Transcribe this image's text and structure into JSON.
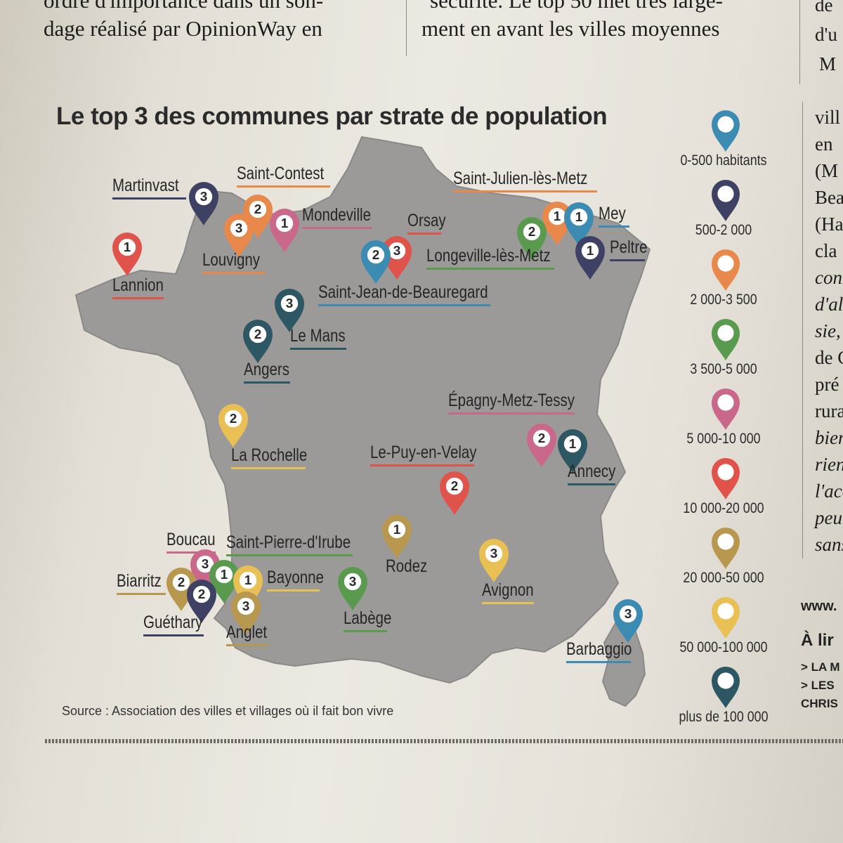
{
  "article": {
    "left_lines": [
      "ordre d'importance dans un son-",
      "dage réalisé par OpinionWay en"
    ],
    "mid_lines": [
      "sécurité. Le top 50 met très large-",
      "ment en avant les villes moyennes"
    ],
    "right_top": [
      "de",
      "d'u",
      "M"
    ],
    "right_col": [
      {
        "t": "vill",
        "i": false
      },
      {
        "t": "en",
        "i": false
      },
      {
        "t": "(M",
        "i": false
      },
      {
        "t": "Bea",
        "i": false
      },
      {
        "t": "(Ha",
        "i": false
      },
      {
        "t": "cla",
        "i": false
      },
      {
        "t": "con",
        "i": true
      },
      {
        "t": "d'al",
        "i": true
      },
      {
        "t": "sie,",
        "i": true
      },
      {
        "t": "de C",
        "i": false
      },
      {
        "t": "pré",
        "i": false
      },
      {
        "t": "rura",
        "i": false
      },
      {
        "t": "bien",
        "i": true
      },
      {
        "t": "rien",
        "i": true
      },
      {
        "t": "l'acc",
        "i": true
      },
      {
        "t": "peu",
        "i": true
      },
      {
        "t": "sans",
        "i": true
      }
    ],
    "right_bits": [
      "www.",
      "À lir",
      "> LA M",
      "> LES",
      "CHRIS"
    ]
  },
  "title": "Le top 3 des communes par strate de population",
  "source": "Source : Association des villes et villages où il fait bon vivre",
  "legend": [
    {
      "label": "0-500 habitants",
      "color": "#3b8bb3"
    },
    {
      "label": "500-2 000",
      "color": "#3e4163"
    },
    {
      "label": "2 000-3 500",
      "color": "#e8884a"
    },
    {
      "label": "3 500-5 000",
      "color": "#5a9a4e"
    },
    {
      "label": "5 000-10 000",
      "color": "#c9688a"
    },
    {
      "label": "10 000-20 000",
      "color": "#e0534b"
    },
    {
      "label": "20 000-50 000",
      "color": "#b8974f"
    },
    {
      "label": "50 000-100 000",
      "color": "#e9c053"
    },
    {
      "label": "plus de 100 000",
      "color": "#2d5763"
    }
  ],
  "places": [
    {
      "name": "Martinvast",
      "rank": "3",
      "stratum": 1
    },
    {
      "name": "Saint-Contest",
      "rank": "2",
      "stratum": 2
    },
    {
      "name": "Mondeville",
      "rank": "1",
      "stratum": 4
    },
    {
      "name": "Louvigny",
      "rank": "3",
      "stratum": 2
    },
    {
      "name": "Lannion",
      "rank": "1",
      "stratum": 5
    },
    {
      "name": "Orsay",
      "rank": "3",
      "stratum": 5
    },
    {
      "name": "Saint-Jean-de-Beauregard",
      "rank": "2",
      "stratum": 0
    },
    {
      "name": "Saint-Julien-lès-Metz",
      "rank": "1",
      "stratum": 2
    },
    {
      "name": "Mey",
      "rank": "1",
      "stratum": 0
    },
    {
      "name": "Longeville-lès-Metz",
      "rank": "2",
      "stratum": 3
    },
    {
      "name": "Peltre",
      "rank": "1",
      "stratum": 1
    },
    {
      "name": "Le Mans",
      "rank": "3",
      "stratum": 8
    },
    {
      "name": "Angers",
      "rank": "2",
      "stratum": 8
    },
    {
      "name": "La Rochelle",
      "rank": "2",
      "stratum": 7
    },
    {
      "name": "Épagny-Metz-Tessy",
      "rank": "2",
      "stratum": 4
    },
    {
      "name": "Annecy",
      "rank": "1",
      "stratum": 8
    },
    {
      "name": "Le-Puy-en-Velay",
      "rank": "2",
      "stratum": 5
    },
    {
      "name": "Boucau",
      "rank": "3",
      "stratum": 4
    },
    {
      "name": "Saint-Pierre-d'Irube",
      "rank": "1",
      "stratum": 3
    },
    {
      "name": "Biarritz",
      "rank": "2",
      "stratum": 6
    },
    {
      "name": "Guéthary",
      "rank": "2",
      "stratum": 1
    },
    {
      "name": "Bayonne",
      "rank": "1",
      "stratum": 7
    },
    {
      "name": "Anglet",
      "rank": "3",
      "stratum": 6
    },
    {
      "name": "Rodez",
      "rank": "1",
      "stratum": 6
    },
    {
      "name": "Labège",
      "rank": "3",
      "stratum": 3
    },
    {
      "name": "Avignon",
      "rank": "3",
      "stratum": 7
    },
    {
      "name": "Barbaggio",
      "rank": "3",
      "stratum": 0
    }
  ]
}
